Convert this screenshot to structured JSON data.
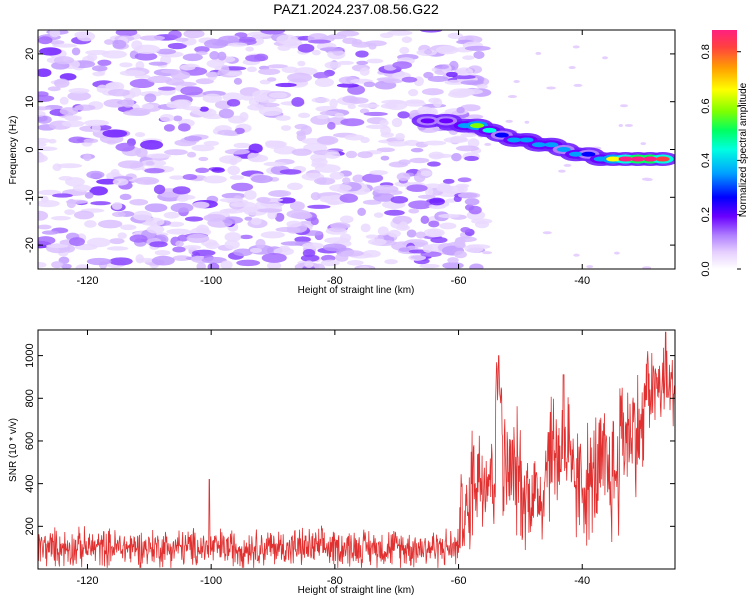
{
  "title": "PAZ1.2024.237.08.56.G22",
  "chart_data": [
    {
      "type": "heatmap",
      "xlabel": "Height of straight line (km)",
      "ylabel": "Frequency (Hz)",
      "xlim": [
        -128,
        -25
      ],
      "ylim": [
        -25,
        25
      ],
      "xticks": [
        -120,
        -100,
        -80,
        -60,
        -40
      ],
      "yticks": [
        -20,
        -10,
        0,
        10,
        20
      ],
      "colorbar": {
        "label": "Normalized spectral amplitude",
        "range": [
          0,
          0.88
        ],
        "ticks": [
          0.0,
          0.2,
          0.4,
          0.6,
          0.8
        ],
        "colors": [
          "#ffffff",
          "#e6d0ff",
          "#b080ff",
          "#6a00ff",
          "#0000ff",
          "#00a0ff",
          "#00ffe0",
          "#00ff60",
          "#80ff00",
          "#ffff00",
          "#ffa000",
          "#ff4040",
          "#ff2080"
        ]
      },
      "noise_region": {
        "x": [
          -128,
          -60
        ],
        "y": [
          -25,
          25
        ],
        "amplitude": [
          0.0,
          0.12
        ]
      },
      "ridge": [
        {
          "x": -65,
          "y": 6,
          "amp": 0.2
        },
        {
          "x": -62,
          "y": 6,
          "amp": 0.25
        },
        {
          "x": -59,
          "y": 5,
          "amp": 0.35
        },
        {
          "x": -57,
          "y": 5,
          "amp": 0.6
        },
        {
          "x": -55,
          "y": 4,
          "amp": 0.45
        },
        {
          "x": -53,
          "y": 3,
          "amp": 0.3
        },
        {
          "x": -51,
          "y": 2,
          "amp": 0.35
        },
        {
          "x": -49,
          "y": 2,
          "amp": 0.4
        },
        {
          "x": -47,
          "y": 1,
          "amp": 0.35
        },
        {
          "x": -45,
          "y": 1,
          "amp": 0.38
        },
        {
          "x": -43,
          "y": 0,
          "amp": 0.33
        },
        {
          "x": -41,
          "y": -1,
          "amp": 0.4
        },
        {
          "x": -39,
          "y": -1,
          "amp": 0.3
        },
        {
          "x": -37,
          "y": -2,
          "amp": 0.35
        },
        {
          "x": -35,
          "y": -2,
          "amp": 0.65
        },
        {
          "x": -33,
          "y": -2,
          "amp": 0.85
        },
        {
          "x": -31,
          "y": -2,
          "amp": 0.88
        },
        {
          "x": -29,
          "y": -2,
          "amp": 0.88
        },
        {
          "x": -27,
          "y": -2,
          "amp": 0.8
        }
      ]
    },
    {
      "type": "line",
      "xlabel": "Height of straight line (km)",
      "ylabel": "SNR (10 * v/v)",
      "xlim": [
        -128,
        -25
      ],
      "ylim": [
        0,
        1120
      ],
      "xticks": [
        -120,
        -100,
        -80,
        -60,
        -40
      ],
      "yticks": [
        200,
        400,
        600,
        800,
        1000
      ],
      "series": [
        {
          "color": "#e03030",
          "segments": [
            {
              "x": [
                -128,
                -60
              ],
              "baseline": 100,
              "spread": 110
            },
            {
              "x": [
                -60,
                -58
              ],
              "baseline": 250,
              "spread": 250
            },
            {
              "x": [
                -58,
                -54
              ],
              "baseline": 450,
              "spread": 350
            },
            {
              "x": [
                -54,
                -53
              ],
              "baseline": 850,
              "spread": 150
            },
            {
              "x": [
                -53,
                -50
              ],
              "baseline": 450,
              "spread": 350
            },
            {
              "x": [
                -50,
                -46
              ],
              "baseline": 350,
              "spread": 300
            },
            {
              "x": [
                -46,
                -42
              ],
              "baseline": 550,
              "spread": 400
            },
            {
              "x": [
                -42,
                -38
              ],
              "baseline": 400,
              "spread": 350
            },
            {
              "x": [
                -38,
                -34
              ],
              "baseline": 450,
              "spread": 400
            },
            {
              "x": [
                -34,
                -30
              ],
              "baseline": 650,
              "spread": 350
            },
            {
              "x": [
                -30,
                -25
              ],
              "baseline": 850,
              "spread": 250
            }
          ],
          "peaks": [
            {
              "x": -100.3,
              "y": 420
            },
            {
              "x": -53.5,
              "y": 1000
            },
            {
              "x": -43,
              "y": 910
            },
            {
              "x": -26.5,
              "y": 1110
            }
          ]
        }
      ]
    }
  ]
}
